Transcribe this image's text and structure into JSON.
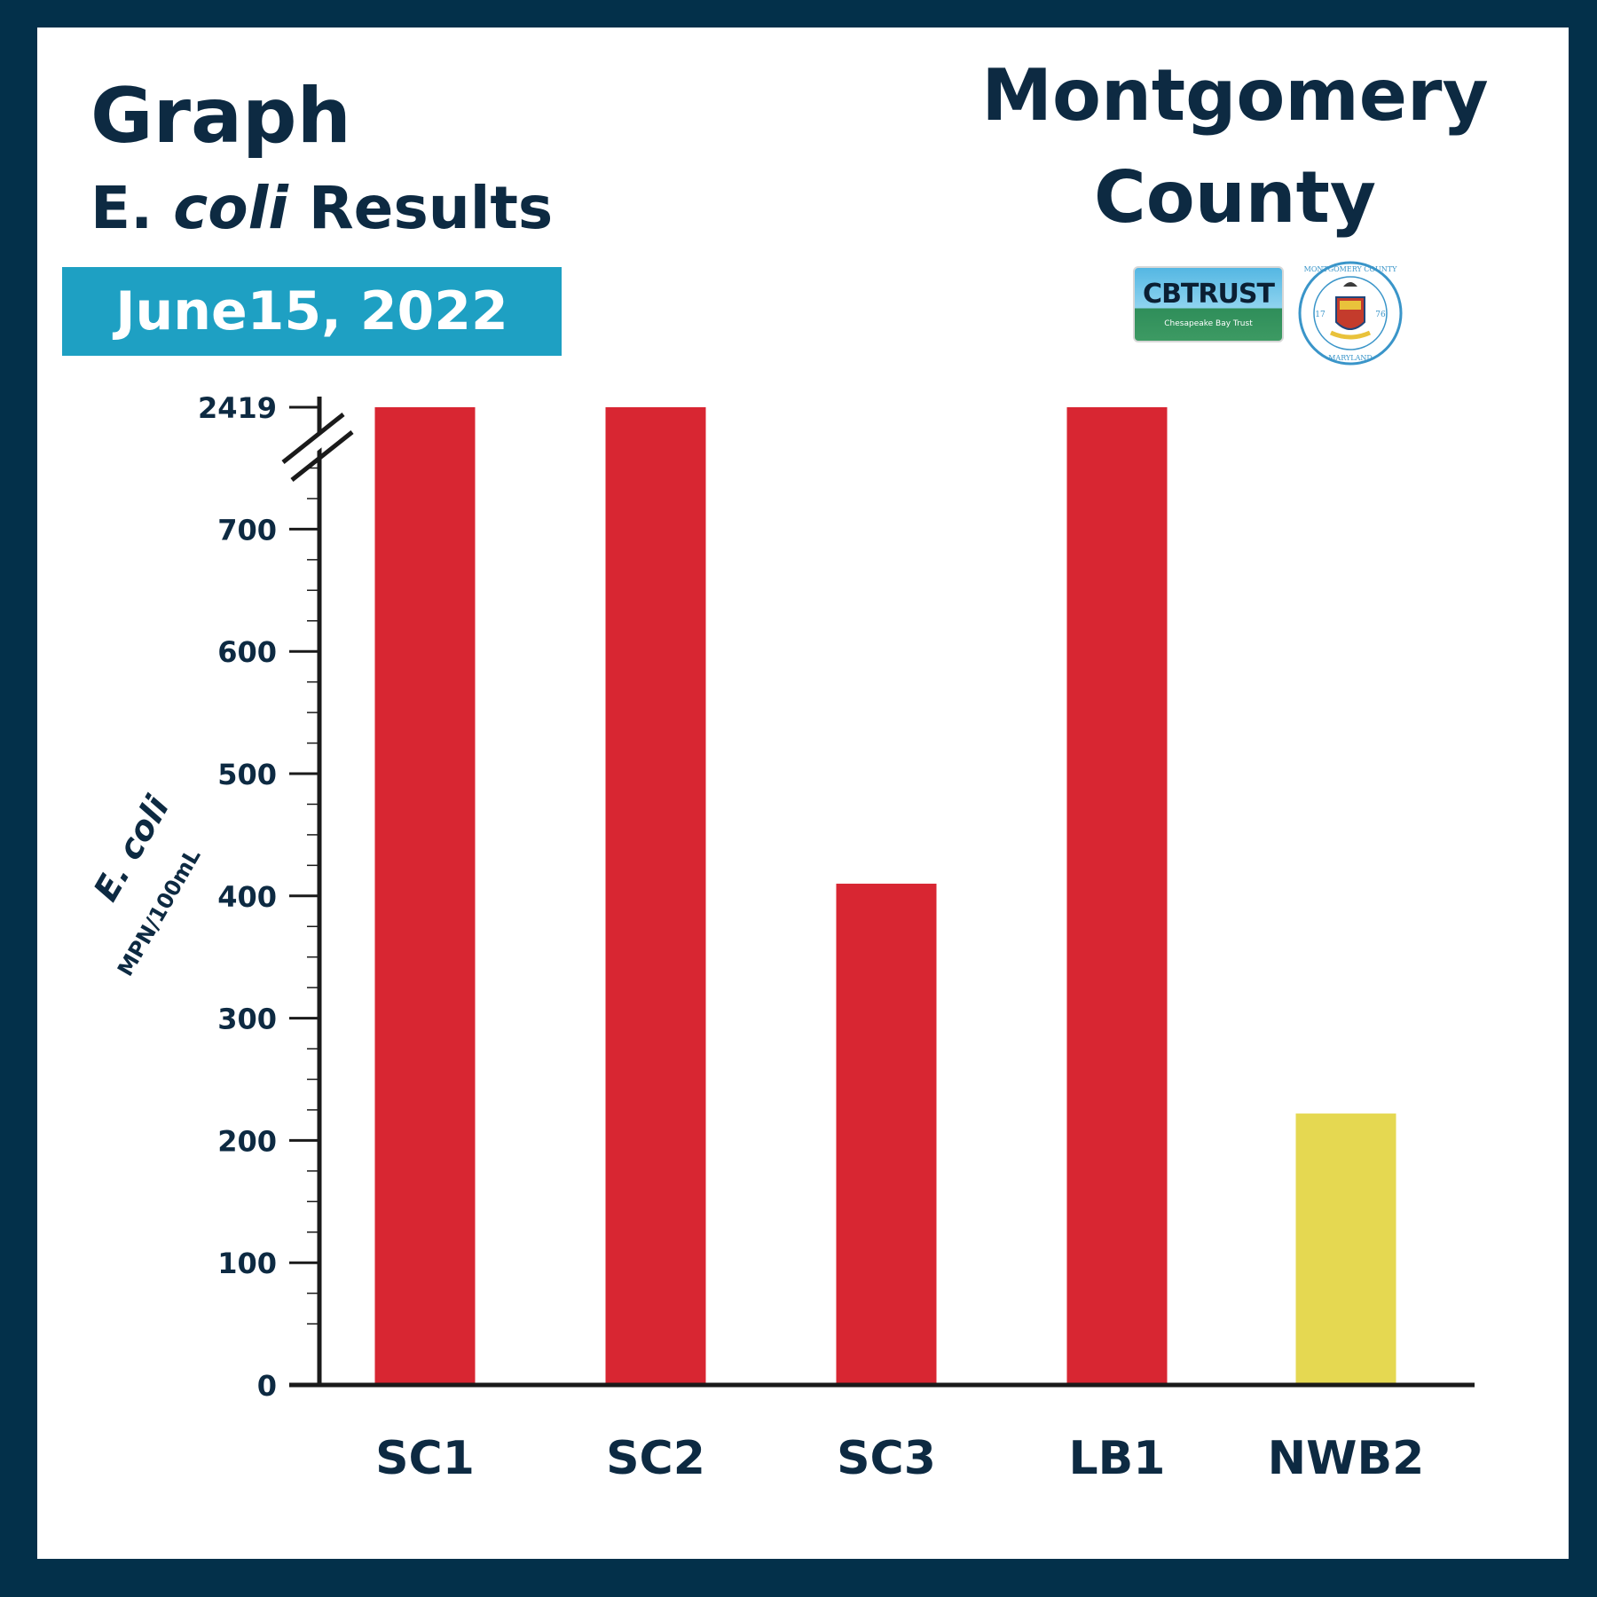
{
  "header": {
    "title": "Graph",
    "subtitle_prefix": "E.",
    "subtitle_italic": "coli",
    "subtitle_suffix": "Results",
    "date": "June15, 2022",
    "county_line1": "Montgomery",
    "county_line2": "County"
  },
  "logos": {
    "cbtrust_text": "CBTRUST",
    "cbtrust_subtext": "Chesapeake Bay Trust",
    "seal_top_text": "MONTGOMERY COUNTY",
    "seal_bottom_text": "MARYLAND",
    "seal_year_left": "17",
    "seal_year_right": "76"
  },
  "chart_data": {
    "type": "bar",
    "categories": [
      "SC1",
      "SC2",
      "SC3",
      "LB1",
      "NWB2"
    ],
    "values": [
      2419,
      2419,
      410,
      2419,
      222
    ],
    "bar_colors": [
      "#d82632",
      "#d82632",
      "#d82632",
      "#d82632",
      "#e5d851"
    ],
    "title": "",
    "ylabel": "E. coli",
    "ylabel_units": "MPN/100mL",
    "y_ticks": [
      0,
      100,
      200,
      300,
      400,
      500,
      600,
      700
    ],
    "y_break_label": "2419",
    "ylim": [
      0,
      2419
    ],
    "axis_break": true,
    "grid": false
  }
}
